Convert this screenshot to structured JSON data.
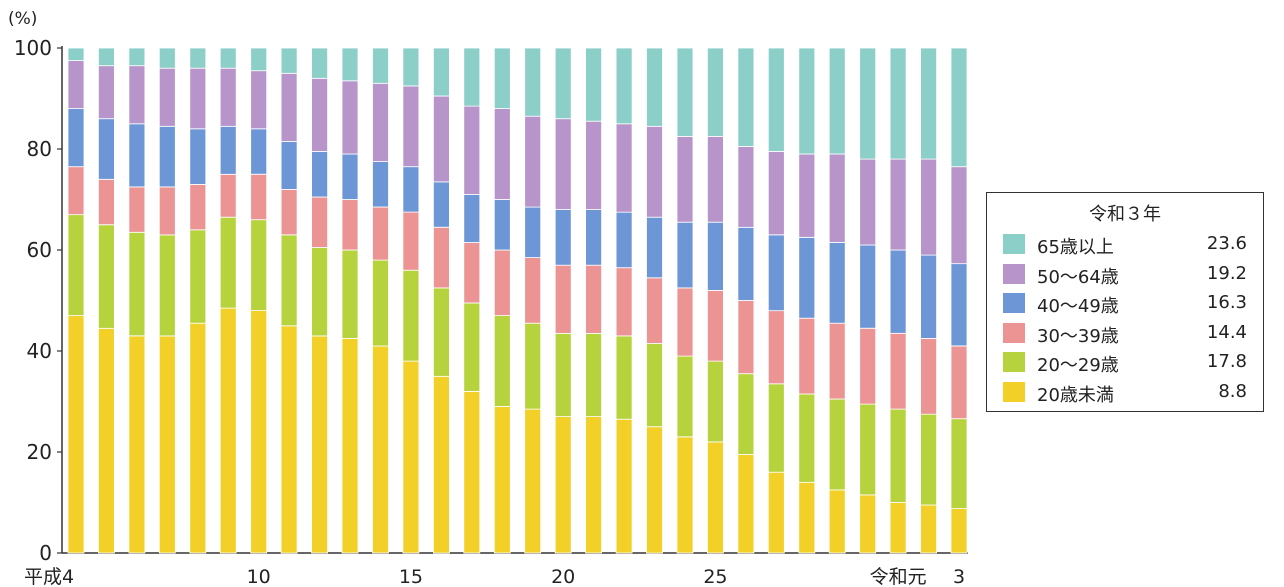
{
  "chart_data": {
    "type": "bar",
    "stacked": true,
    "y_unit_label": "(%)",
    "ylim": [
      0,
      100
    ],
    "yticks": [
      0,
      20,
      40,
      60,
      80,
      100
    ],
    "x_tick_labels": [
      {
        "index": 0,
        "label": "平成4"
      },
      {
        "index": 6,
        "label": "10"
      },
      {
        "index": 11,
        "label": "15"
      },
      {
        "index": 16,
        "label": "20"
      },
      {
        "index": 21,
        "label": "25"
      },
      {
        "index": 27,
        "label": "令和元"
      },
      {
        "index": 29,
        "label": "3"
      }
    ],
    "series": [
      {
        "name": "20歳未満",
        "color": "#f2d027",
        "values": [
          47,
          44.5,
          43,
          43,
          45.5,
          48.5,
          48,
          45,
          43,
          42.5,
          41,
          38,
          35,
          32,
          29,
          28.5,
          27,
          27,
          26.5,
          25,
          23,
          22,
          19.5,
          16,
          14,
          12.5,
          11.5,
          10,
          9.5,
          8.8
        ]
      },
      {
        "name": "20〜29歳",
        "color": "#b6d23c",
        "values": [
          20,
          20.5,
          20.5,
          20,
          18.5,
          18,
          18,
          18,
          17.5,
          17.5,
          17,
          18,
          17.5,
          17.5,
          18,
          17,
          16.5,
          16.5,
          16.5,
          16.5,
          16,
          16,
          16,
          17.5,
          17.5,
          18,
          18,
          18.5,
          18,
          17.8
        ]
      },
      {
        "name": "30〜39歳",
        "color": "#ec9494",
        "values": [
          9.5,
          9,
          9,
          9.5,
          9,
          8.5,
          9,
          9,
          10,
          10,
          10.5,
          11.5,
          12,
          12,
          13,
          13,
          13.5,
          13.5,
          13.5,
          13,
          13.5,
          14,
          14.5,
          14.5,
          15,
          15,
          15,
          15,
          15,
          14.4
        ]
      },
      {
        "name": "40〜49歳",
        "color": "#6c96d6",
        "values": [
          11.5,
          12,
          12.5,
          12,
          11,
          9.5,
          9,
          9.5,
          9,
          9,
          9,
          9,
          9,
          9.5,
          10,
          10,
          11,
          11,
          11,
          12,
          13,
          13.5,
          14.5,
          15,
          16,
          16,
          16.5,
          16.5,
          16.5,
          16.3
        ]
      },
      {
        "name": "50〜64歳",
        "color": "#b794ca",
        "values": [
          9.5,
          10.5,
          11.5,
          11.5,
          12,
          11.5,
          11.5,
          13.5,
          14.5,
          14.5,
          15.5,
          16,
          17,
          17.5,
          18,
          18,
          18,
          17.5,
          17.5,
          18,
          17,
          17,
          16,
          16.5,
          16.5,
          17.5,
          17,
          18,
          19,
          19.2
        ]
      },
      {
        "name": "65歳以上",
        "color": "#8ccec8",
        "values": [
          2.5,
          3.5,
          3.5,
          4,
          4,
          4,
          4.5,
          5,
          6,
          6.5,
          7,
          7.5,
          9.5,
          11,
          12,
          13.5,
          14,
          14,
          15,
          15.5,
          17.5,
          17.5,
          19.5,
          20.5,
          21,
          21,
          22,
          22,
          22,
          23.6
        ]
      }
    ],
    "legend": {
      "title": "令和３年",
      "placement": "right",
      "entries": [
        {
          "label": "65歳以上",
          "value": "23.6",
          "color": "#8ccec8"
        },
        {
          "label": "50〜64歳",
          "value": "19.2",
          "color": "#b794ca"
        },
        {
          "label": "40〜49歳",
          "value": "16.3",
          "color": "#6c96d6"
        },
        {
          "label": "30〜39歳",
          "value": "14.4",
          "color": "#ec9494"
        },
        {
          "label": "20〜29歳",
          "value": "17.8",
          "color": "#b6d23c"
        },
        {
          "label": "20歳未満",
          "value": "8.8",
          "color": "#f2d027"
        }
      ]
    }
  }
}
